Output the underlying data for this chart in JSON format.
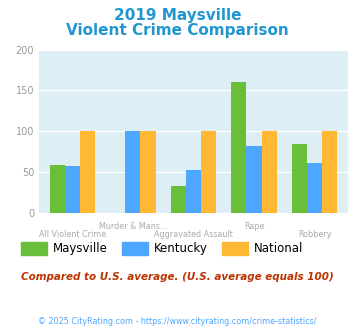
{
  "title_line1": "2019 Maysville",
  "title_line2": "Violent Crime Comparison",
  "categories": [
    "All Violent Crime",
    "Murder & Mans...",
    "Aggravated Assault",
    "Rape",
    "Robbery"
  ],
  "maysville": [
    58,
    0,
    33,
    160,
    84
  ],
  "kentucky": [
    57,
    100,
    52,
    82,
    61
  ],
  "national": [
    100,
    100,
    100,
    100,
    100
  ],
  "maysville_color": "#6abf3a",
  "kentucky_color": "#4da6ff",
  "national_color": "#ffb833",
  "bg_color": "#ddeef5",
  "title_color": "#2196d0",
  "xlabel_color": "#b0a8a8",
  "ylim": [
    0,
    200
  ],
  "yticks": [
    0,
    50,
    100,
    150,
    200
  ],
  "note": "Compared to U.S. average. (U.S. average equals 100)",
  "note_color": "#bb3300",
  "footer": "© 2025 CityRating.com - https://www.cityrating.com/crime-statistics/",
  "footer_color": "#4da6ff",
  "legend_labels": [
    "Maysville",
    "Kentucky",
    "National"
  ],
  "bar_width": 0.25
}
